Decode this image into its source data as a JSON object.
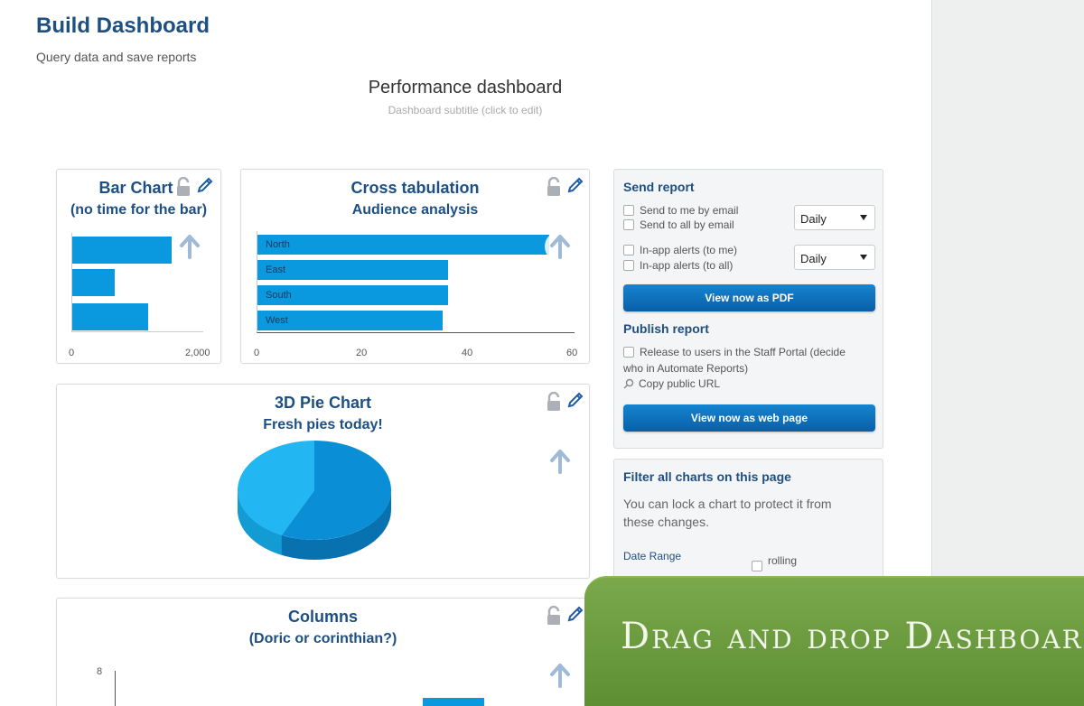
{
  "header": {
    "title": "Build Dashboard",
    "subtitle": "Query data and save reports"
  },
  "dashboard": {
    "title": "Performance dashboard",
    "subtitle": "Dashboard subtitle (click to edit)"
  },
  "cards": {
    "bar_chart": {
      "title": "Bar Chart",
      "subtitle": "(no time for the bar)",
      "chart_data": {
        "type": "bar",
        "orientation": "horizontal",
        "values": [
          1500,
          650,
          1150
        ],
        "ticks": [
          "0",
          "2,000"
        ],
        "xlim": [
          0,
          2000
        ]
      }
    },
    "cross_tab": {
      "title": "Cross tabulation",
      "subtitle": "Audience analysis",
      "chart_data": {
        "type": "bar",
        "orientation": "horizontal",
        "categories": [
          "North",
          "East",
          "South",
          "West"
        ],
        "values": [
          55,
          36,
          36,
          35
        ],
        "ticks": [
          "0",
          "20",
          "40",
          "60"
        ],
        "xlim": [
          0,
          60
        ]
      }
    },
    "pie": {
      "title": "3D Pie Chart",
      "subtitle": "Fresh pies today!",
      "chart_data": {
        "type": "pie",
        "values": [
          57,
          43
        ],
        "colors": [
          "#0a8fd6",
          "#22b6f3"
        ]
      }
    },
    "columns": {
      "title": "Columns",
      "subtitle": "(Doric or corinthian?)",
      "chart_data": {
        "type": "bar",
        "orientation": "vertical",
        "ticks": [
          "8"
        ]
      }
    }
  },
  "send_report": {
    "heading": "Send report",
    "options": [
      "Send to me by email",
      "Send to all by email",
      "In-app alerts (to me)",
      "In-app alerts (to all)"
    ],
    "frequency_1": "Daily",
    "frequency_2": "Daily",
    "pdf_button": "View now as PDF"
  },
  "publish_report": {
    "heading": "Publish report",
    "release_line1": "Release to users in the Staff Portal (decide",
    "release_line2": "who in Automate Reports)",
    "copy_url": "Copy public URL",
    "web_button": "View now as web page"
  },
  "filter": {
    "heading": "Filter all charts on this page",
    "text_line1": "You can lock a chart to protect it from",
    "text_line2": "these changes.",
    "date_range": "Date Range",
    "rolling": "rolling"
  },
  "banner": {
    "text": "Drag and drop Dashboards"
  },
  "colors": {
    "accent": "#1e4f82",
    "bar": "#0a98de",
    "button": "#0a6cbf",
    "banner": "#6a9a3d"
  }
}
